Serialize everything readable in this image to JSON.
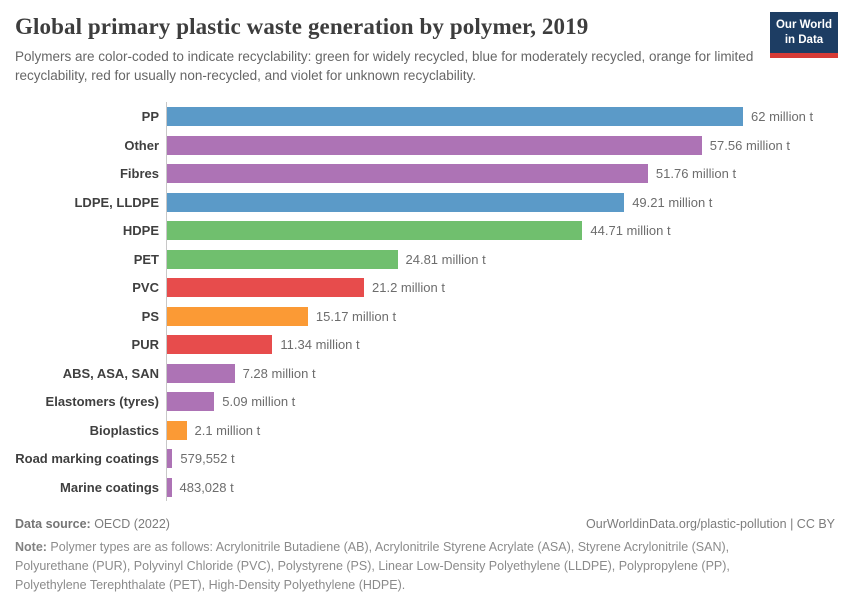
{
  "header": {
    "title": "Global primary plastic waste generation by polymer, 2019",
    "subtitle": "Polymers are color-coded to indicate recyclability: green for widely recycled, blue for moderately recycled, orange for limited recyclability, red for usually non-recycled, and violet for unknown recyclability.",
    "logo": {
      "line1": "Our World",
      "line2": "in Data",
      "bg_color": "#1d3d63",
      "accent_color": "#d73b36"
    }
  },
  "chart_data": {
    "type": "bar",
    "orientation": "horizontal",
    "title": "Global primary plastic waste generation by polymer, 2019",
    "xlabel": "",
    "ylabel": "",
    "xlim": [
      0,
      62
    ],
    "unit": "million tonnes",
    "grid": false,
    "value_label_position": "end-of-bar",
    "recyclability_colors": {
      "widely recycled": "#70bf6e",
      "moderately recycled": "#5b9ac8",
      "limited recyclability": "#fb9a35",
      "usually non-recycled": "#e74c4c",
      "unknown recyclability": "#ad73b5"
    },
    "bars": [
      {
        "category": "PP",
        "value_million_t": 62,
        "label": "62 million t",
        "recyclability": "moderately recycled"
      },
      {
        "category": "Other",
        "value_million_t": 57.56,
        "label": "57.56 million t",
        "recyclability": "unknown recyclability"
      },
      {
        "category": "Fibres",
        "value_million_t": 51.76,
        "label": "51.76 million t",
        "recyclability": "unknown recyclability"
      },
      {
        "category": "LDPE, LLDPE",
        "value_million_t": 49.21,
        "label": "49.21 million t",
        "recyclability": "moderately recycled"
      },
      {
        "category": "HDPE",
        "value_million_t": 44.71,
        "label": "44.71 million t",
        "recyclability": "widely recycled"
      },
      {
        "category": "PET",
        "value_million_t": 24.81,
        "label": "24.81 million t",
        "recyclability": "widely recycled"
      },
      {
        "category": "PVC",
        "value_million_t": 21.2,
        "label": "21.2 million t",
        "recyclability": "usually non-recycled"
      },
      {
        "category": "PS",
        "value_million_t": 15.17,
        "label": "15.17 million t",
        "recyclability": "limited recyclability"
      },
      {
        "category": "PUR",
        "value_million_t": 11.34,
        "label": "11.34 million t",
        "recyclability": "usually non-recycled"
      },
      {
        "category": "ABS, ASA, SAN",
        "value_million_t": 7.28,
        "label": "7.28 million t",
        "recyclability": "unknown recyclability"
      },
      {
        "category": "Elastomers (tyres)",
        "value_million_t": 5.09,
        "label": "5.09 million t",
        "recyclability": "unknown recyclability"
      },
      {
        "category": "Bioplastics",
        "value_million_t": 2.1,
        "label": "2.1 million t",
        "recyclability": "limited recyclability"
      },
      {
        "category": "Road marking coatings",
        "value_million_t": 0.579552,
        "label": "579,552 t",
        "recyclability": "unknown recyclability"
      },
      {
        "category": "Marine coatings",
        "value_million_t": 0.483028,
        "label": "483,028 t",
        "recyclability": "unknown recyclability"
      }
    ]
  },
  "footer": {
    "data_source_label": "Data source:",
    "data_source_value": " OECD (2022)",
    "link_text": "OurWorldinData.org/plastic-pollution",
    "license_separator": " | ",
    "license_text": "CC BY",
    "note_label": "Note:",
    "note_text": " Polymer types are as follows: Acrylonitrile Butadiene (AB), Acrylonitrile Styrene Acrylate (ASA), Styrene Acrylonitrile (SAN), Polyurethane (PUR), Polyvinyl Chloride (PVC), Polystyrene (PS), Linear Low-Density Polyethylene (LLDPE), Polypropylene (PP), Polyethylene Terephthalate (PET), High-Density Polyethylene (HDPE)."
  }
}
